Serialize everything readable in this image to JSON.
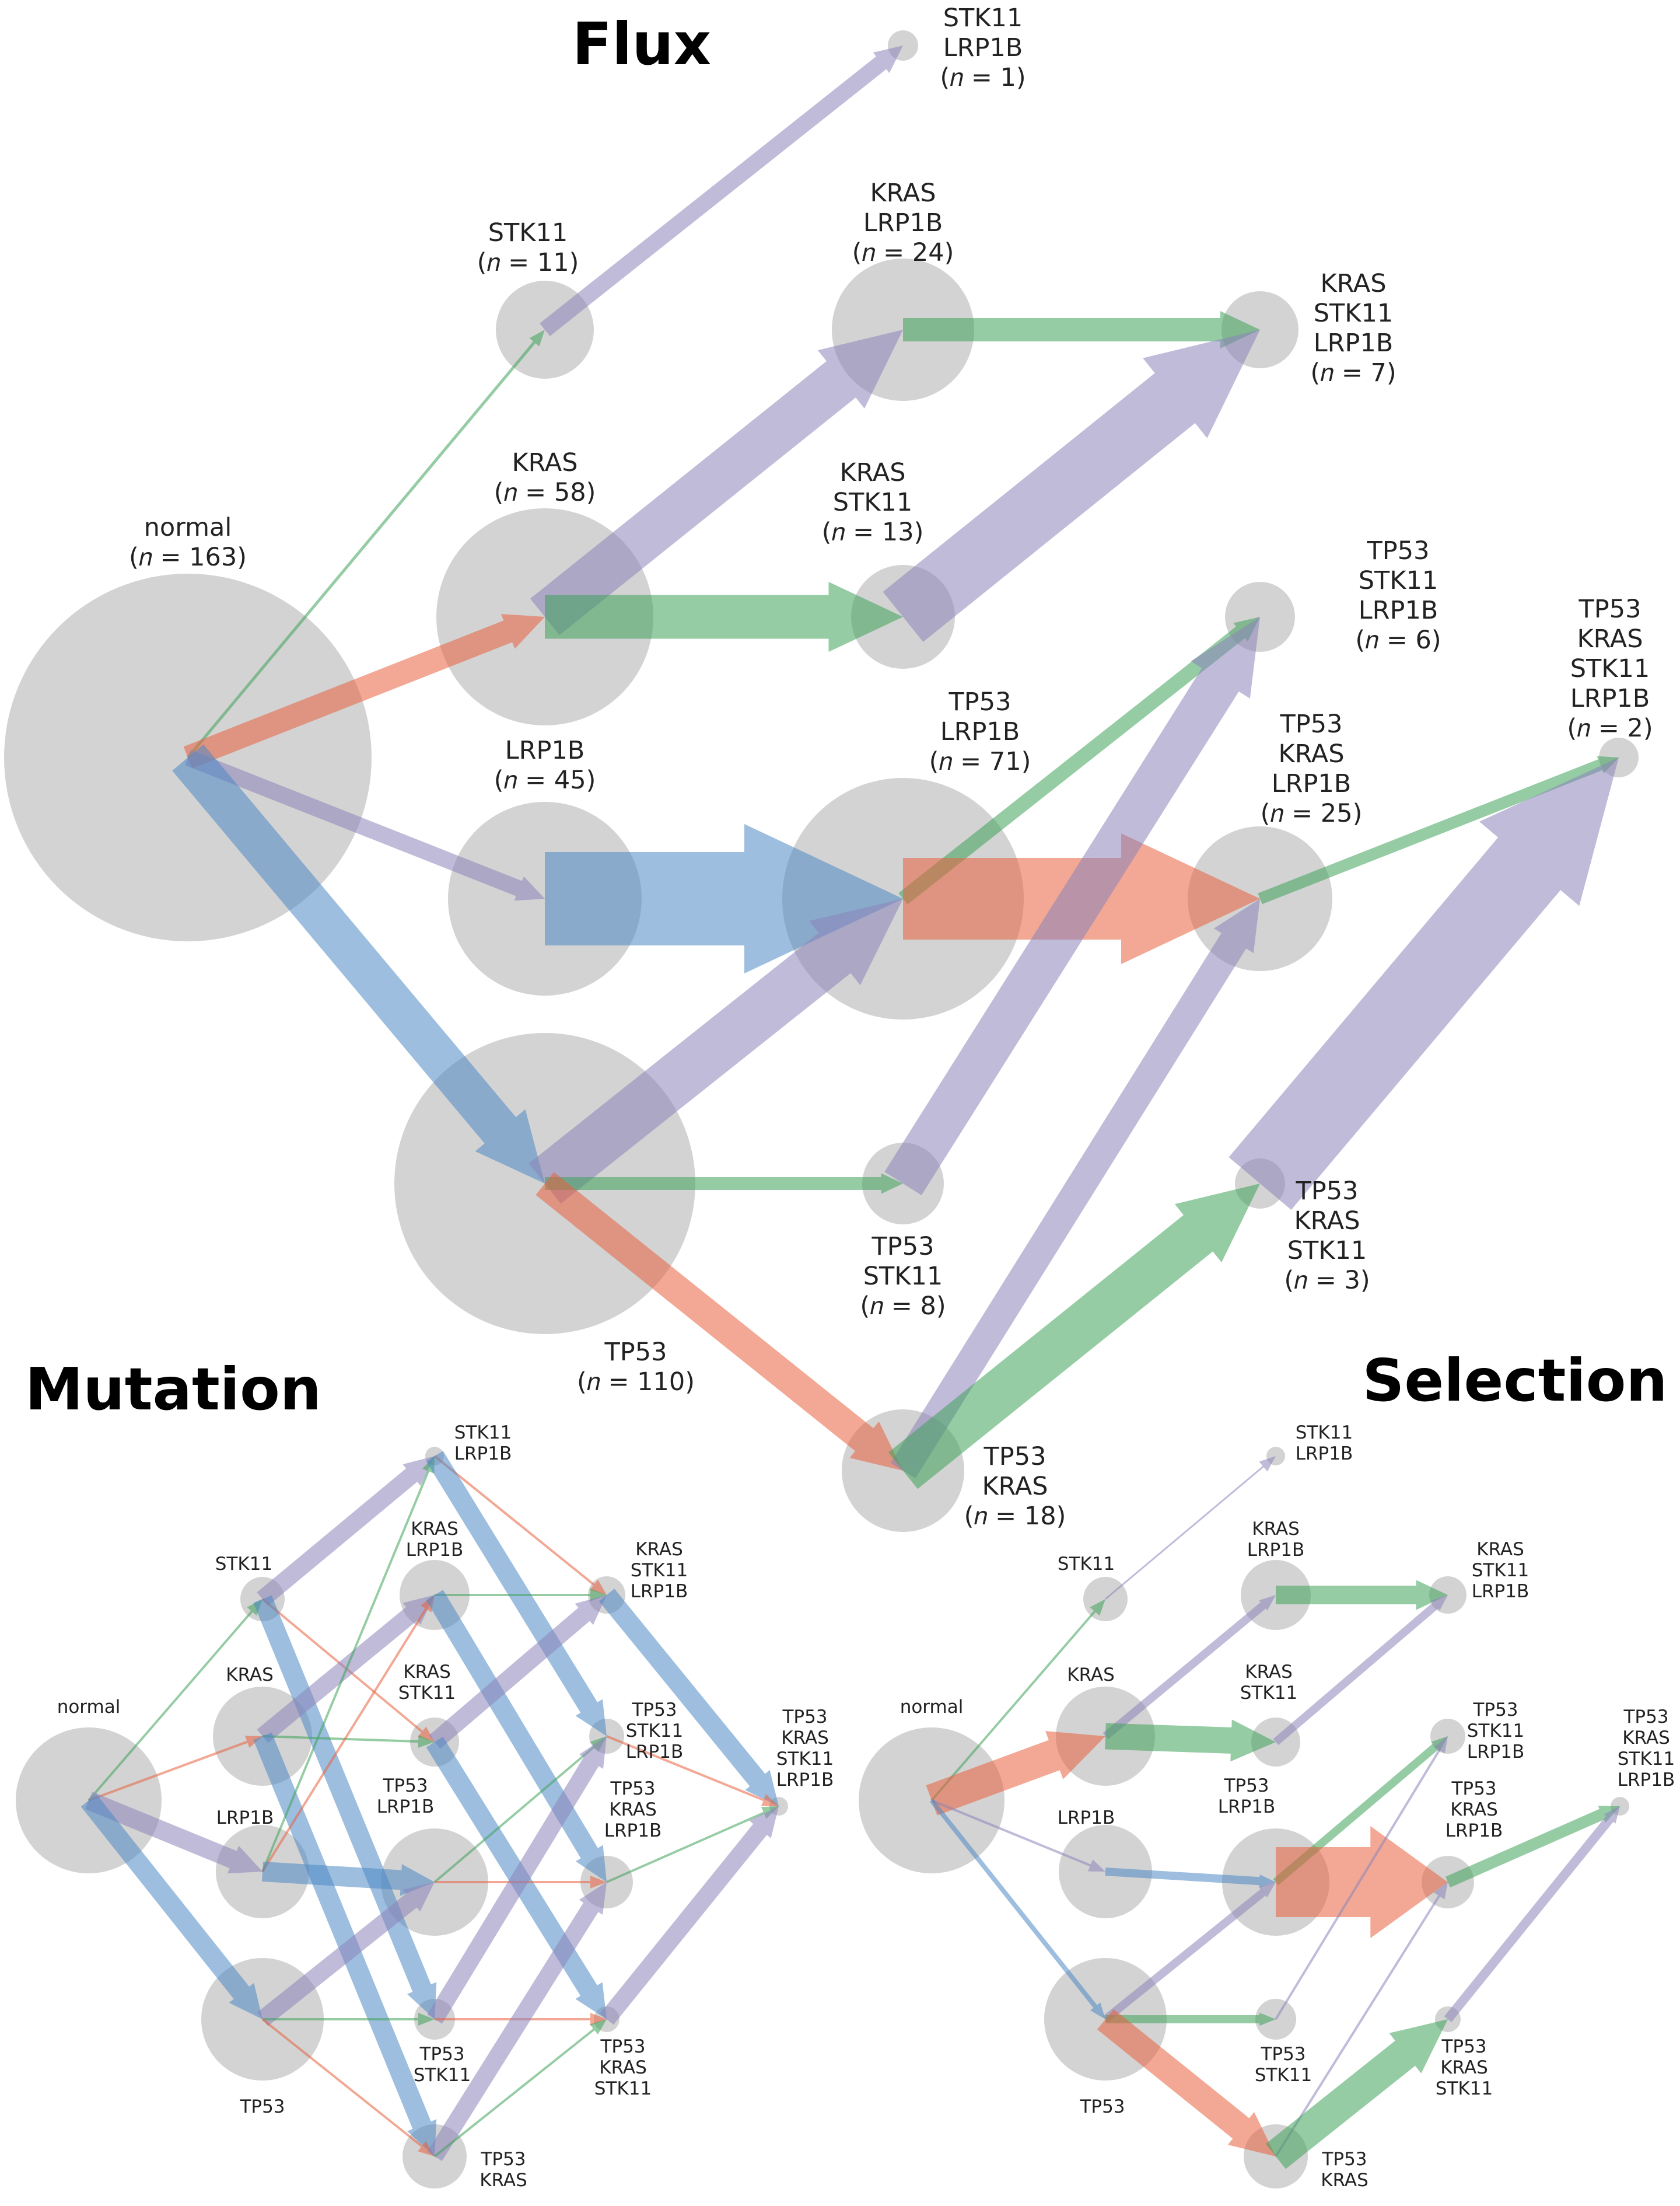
{
  "colors": {
    "node": "#d3d3d3",
    "kras": "#e8613c",
    "tp53": "#4c88c4",
    "stk11": "#3ea35a",
    "lrp1b": "#8a84ba"
  },
  "titles": {
    "flux": "Flux",
    "mutation": "Mutation",
    "selection": "Selection"
  },
  "labels": {
    "normal": [
      "normal",
      "(𝑛 = 163)"
    ],
    "stk11": [
      "STK11",
      "(𝑛 = 11)"
    ],
    "kras": [
      "KRAS",
      "(𝑛 = 58)"
    ],
    "lrp1b": [
      "LRP1B",
      "(𝑛 = 45)"
    ],
    "tp53": [
      "TP53",
      "(𝑛 = 110)"
    ],
    "stk11_lrp1b": [
      "STK11",
      "LRP1B",
      "(𝑛 = 1)"
    ],
    "kras_lrp1b": [
      "KRAS",
      "LRP1B",
      "(𝑛 = 24)"
    ],
    "kras_stk11": [
      "KRAS",
      "STK11",
      "(𝑛 = 13)"
    ],
    "tp53_lrp1b": [
      "TP53",
      "LRP1B",
      "(𝑛 = 71)"
    ],
    "tp53_stk11": [
      "TP53",
      "STK11",
      "(𝑛 = 8)"
    ],
    "tp53_kras": [
      "TP53",
      "KRAS",
      "(𝑛 = 18)"
    ],
    "kras_stk11_lrp1b": [
      "KRAS",
      "STK11",
      "LRP1B",
      "(𝑛 = 7)"
    ],
    "tp53_stk11_lrp1b": [
      "TP53",
      "STK11",
      "LRP1B",
      "(𝑛 = 6)"
    ],
    "tp53_kras_lrp1b": [
      "TP53",
      "KRAS",
      "LRP1B",
      "(𝑛 = 25)"
    ],
    "tp53_kras_stk11": [
      "TP53",
      "KRAS",
      "STK11",
      "(𝑛 = 3)"
    ],
    "all4": [
      "TP53",
      "KRAS",
      "STK11",
      "LRP1B",
      "(𝑛 = 2)"
    ]
  },
  "small_labels": {
    "normal": [
      "normal"
    ],
    "stk11": [
      "STK11"
    ],
    "kras": [
      "KRAS"
    ],
    "lrp1b": [
      "LRP1B"
    ],
    "tp53": [
      "TP53"
    ],
    "stk11_lrp1b": [
      "STK11",
      "LRP1B"
    ],
    "kras_lrp1b": [
      "KRAS",
      "LRP1B"
    ],
    "kras_stk11": [
      "KRAS",
      "STK11"
    ],
    "tp53_lrp1b": [
      "TP53",
      "LRP1B"
    ],
    "tp53_stk11": [
      "TP53",
      "STK11"
    ],
    "tp53_kras": [
      "TP53",
      "KRAS"
    ],
    "kras_stk11_lrp1b": [
      "KRAS",
      "STK11",
      "LRP1B"
    ],
    "tp53_stk11_lrp1b": [
      "TP53",
      "STK11",
      "LRP1B"
    ],
    "tp53_kras_lrp1b": [
      "TP53",
      "KRAS",
      "LRP1B"
    ],
    "tp53_kras_stk11": [
      "TP53",
      "KRAS",
      "STK11"
    ],
    "all4": [
      "TP53",
      "KRAS",
      "STK11",
      "LRP1B"
    ]
  }
}
